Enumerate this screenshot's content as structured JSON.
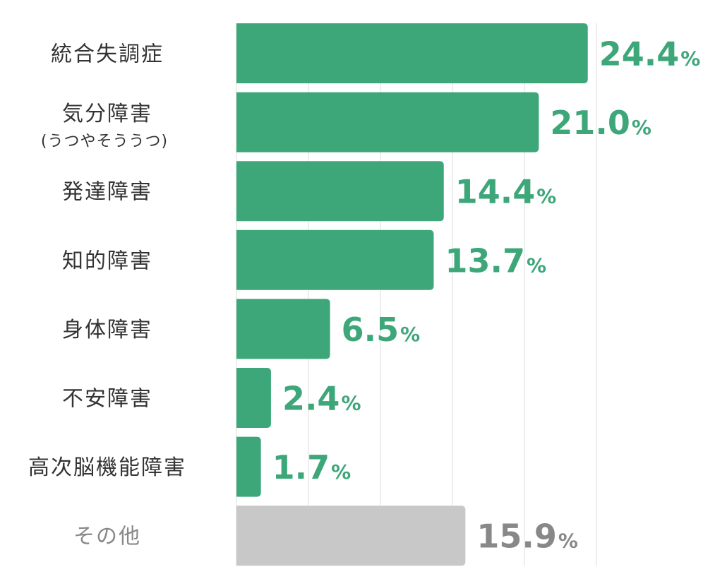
{
  "chart_data": {
    "type": "bar",
    "orientation": "horizontal",
    "unit": "%",
    "grid": true,
    "categories": [
      "統合失調症",
      "気分障害",
      "発達障害",
      "知的障害",
      "身体障害",
      "不安障害",
      "高次脳機能障害",
      "その他"
    ],
    "sublabels": [
      "",
      "(うつやそううつ)",
      "",
      "",
      "",
      "",
      "",
      ""
    ],
    "values": [
      24.4,
      21.0,
      14.4,
      13.7,
      6.5,
      2.4,
      1.7,
      15.9
    ],
    "value_labels": [
      "24.4",
      "21.0",
      "14.4",
      "13.7",
      "6.5",
      "2.4",
      "1.7",
      "15.9"
    ],
    "muted": [
      false,
      false,
      false,
      false,
      false,
      false,
      false,
      true
    ],
    "colors": {
      "bar": "#3ea77a",
      "bar_muted": "#c8c8c8",
      "value": "#3ea77a",
      "value_muted": "#888888",
      "label": "#333333",
      "label_muted": "#888888",
      "grid": "#dddddd"
    }
  }
}
